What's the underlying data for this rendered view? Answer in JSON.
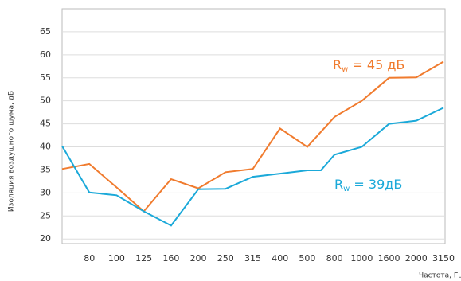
{
  "chart_data": {
    "type": "line",
    "y_label": "Изоляция воздушного шума, дБ",
    "x_label": "Частота, Гц",
    "xlim": [
      0,
      14
    ],
    "ylim": [
      19,
      70
    ],
    "xticks": [
      {
        "value": 1,
        "label": "80"
      },
      {
        "value": 2,
        "label": "100"
      },
      {
        "value": 3,
        "label": "125"
      },
      {
        "value": 4,
        "label": "160"
      },
      {
        "value": 5,
        "label": "200"
      },
      {
        "value": 6,
        "label": "250"
      },
      {
        "value": 7,
        "label": "315"
      },
      {
        "value": 8,
        "label": "400"
      },
      {
        "value": 9,
        "label": "500"
      },
      {
        "value": 10,
        "label": "800"
      },
      {
        "value": 11,
        "label": "1000"
      },
      {
        "value": 12,
        "label": "1600"
      },
      {
        "value": 13,
        "label": "2000"
      },
      {
        "value": 14,
        "label": "3150"
      }
    ],
    "yticks": [
      20,
      25,
      30,
      35,
      40,
      45,
      50,
      55,
      60,
      65
    ],
    "grid": true,
    "series": [
      {
        "name": "R_w = 45 дБ",
        "color": "#f07b2e",
        "label_parts": [
          "R",
          "w",
          " = 45 дБ"
        ],
        "x": [
          0,
          1,
          2,
          3,
          4,
          5,
          6,
          7,
          8,
          9,
          10,
          11,
          12,
          13,
          14
        ],
        "values": [
          35.2,
          36.3,
          31.2,
          26.0,
          33.0,
          31.0,
          34.5,
          35.2,
          44.0,
          40.0,
          46.5,
          50.0,
          55.0,
          55.1,
          58.5
        ]
      },
      {
        "name": "R_w = 39дБ",
        "color": "#1ba9d9",
        "label_parts": [
          "R",
          "w",
          " = 39дБ"
        ],
        "x": [
          0,
          1,
          2,
          3,
          4,
          5,
          6,
          7,
          8,
          9,
          9.5,
          10,
          11,
          12,
          13,
          14
        ],
        "values": [
          40.2,
          30.1,
          29.5,
          26.0,
          22.9,
          30.8,
          30.9,
          33.5,
          34.2,
          34.9,
          34.9,
          38.3,
          40.0,
          45.0,
          45.7,
          48.5
        ]
      }
    ]
  }
}
